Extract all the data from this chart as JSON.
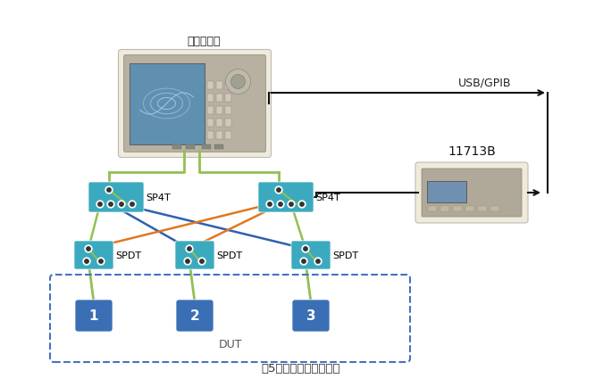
{
  "title": "图5：自动测试系统框图",
  "bg_color": "#ffffff",
  "network_analyzer_label": "网络分析仪",
  "usb_gpib_label": "USB/GPIB",
  "device_11713B_label": "11713B",
  "dut_label": "DUT",
  "teal_color": "#3BAABF",
  "teal_dark": "#2B8FA8",
  "green_color": "#92C050",
  "orange_color": "#E07820",
  "blue_color": "#3060B0",
  "black_color": "#111111",
  "dashed_box_color": "#4472C4",
  "analyzer_bg": "#F0EBD8",
  "device_bg": "#F0EBD8",
  "dut_box_color": "#3B6FB5",
  "na_screen_color": "#4A7DAA",
  "na_body_color": "#AAAAAA"
}
